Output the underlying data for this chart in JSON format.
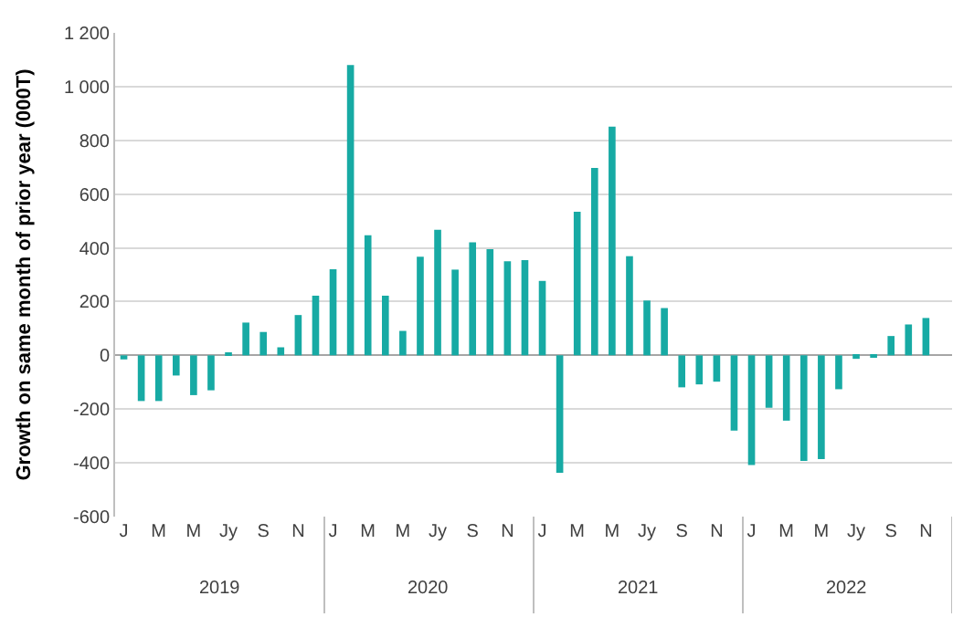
{
  "chart_data": {
    "type": "bar",
    "ylabel": "Growth on same month of prior year (000T)",
    "categories": [
      "J",
      null,
      "M",
      null,
      "M",
      null,
      "Jy",
      null,
      "S",
      null,
      "N",
      null,
      "J",
      null,
      "M",
      null,
      "M",
      null,
      "Jy",
      null,
      "S",
      null,
      "N",
      null,
      "J",
      null,
      "M",
      null,
      "M",
      null,
      "Jy",
      null,
      "S",
      null,
      "N",
      null,
      "J",
      null,
      "M",
      null,
      "M",
      null,
      "Jy",
      null,
      "S",
      null,
      "N",
      null
    ],
    "values": [
      -15,
      -170,
      -170,
      -75,
      -148,
      -130,
      10,
      122,
      87,
      30,
      150,
      222,
      320,
      1080,
      447,
      222,
      91,
      367,
      467,
      319,
      421,
      395,
      350,
      354,
      277,
      -437,
      534,
      697,
      851,
      369,
      204,
      176,
      -119,
      -108,
      -98,
      -280,
      -408,
      -195,
      -243,
      -393,
      -386,
      -126,
      -13,
      -9,
      72,
      115,
      139,
      null
    ],
    "color": "#17aaa4",
    "ylim": [
      -600,
      1200
    ],
    "yticks": [
      {
        "value": -600,
        "label": "-600"
      },
      {
        "value": -400,
        "label": "-400"
      },
      {
        "value": -200,
        "label": "-200"
      },
      0,
      200,
      400,
      600,
      800,
      {
        "value": 1000,
        "label": "1 000"
      },
      {
        "value": 1200,
        "label": "1 200"
      }
    ],
    "annotations": [
      "2019",
      "2020",
      "2021",
      "2022"
    ],
    "grid": "y"
  }
}
